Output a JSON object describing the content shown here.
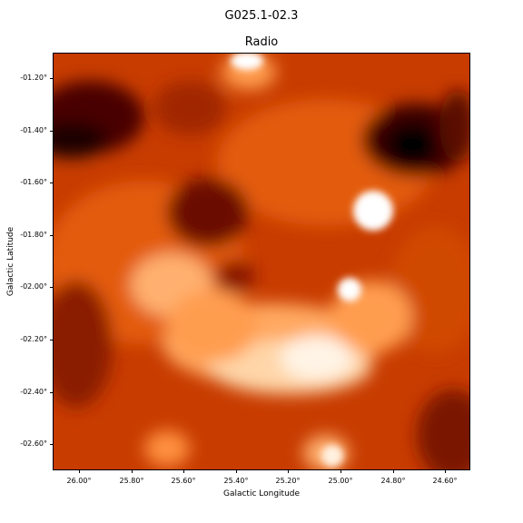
{
  "figure": {
    "title": "G025.1-02.3",
    "subtitle": "Radio",
    "xlabel": "Galactic Longitude",
    "ylabel": "Galactic Latitude"
  },
  "axes": {
    "xticks": [
      "26.00°",
      "25.80°",
      "25.60°",
      "25.40°",
      "25.20°",
      "25.00°",
      "24.80°",
      "24.60°"
    ],
    "yticks": [
      "-01.20°",
      "-01.40°",
      "-01.60°",
      "-01.80°",
      "-02.00°",
      "-02.20°",
      "-02.40°",
      "-02.60°"
    ]
  },
  "image": {
    "description_colormap": "gist_heat-like",
    "colors": {
      "dark": "#1a0000",
      "mid": "#c23a00",
      "bright": "#ff9a40",
      "white": "#ffffff"
    }
  }
}
